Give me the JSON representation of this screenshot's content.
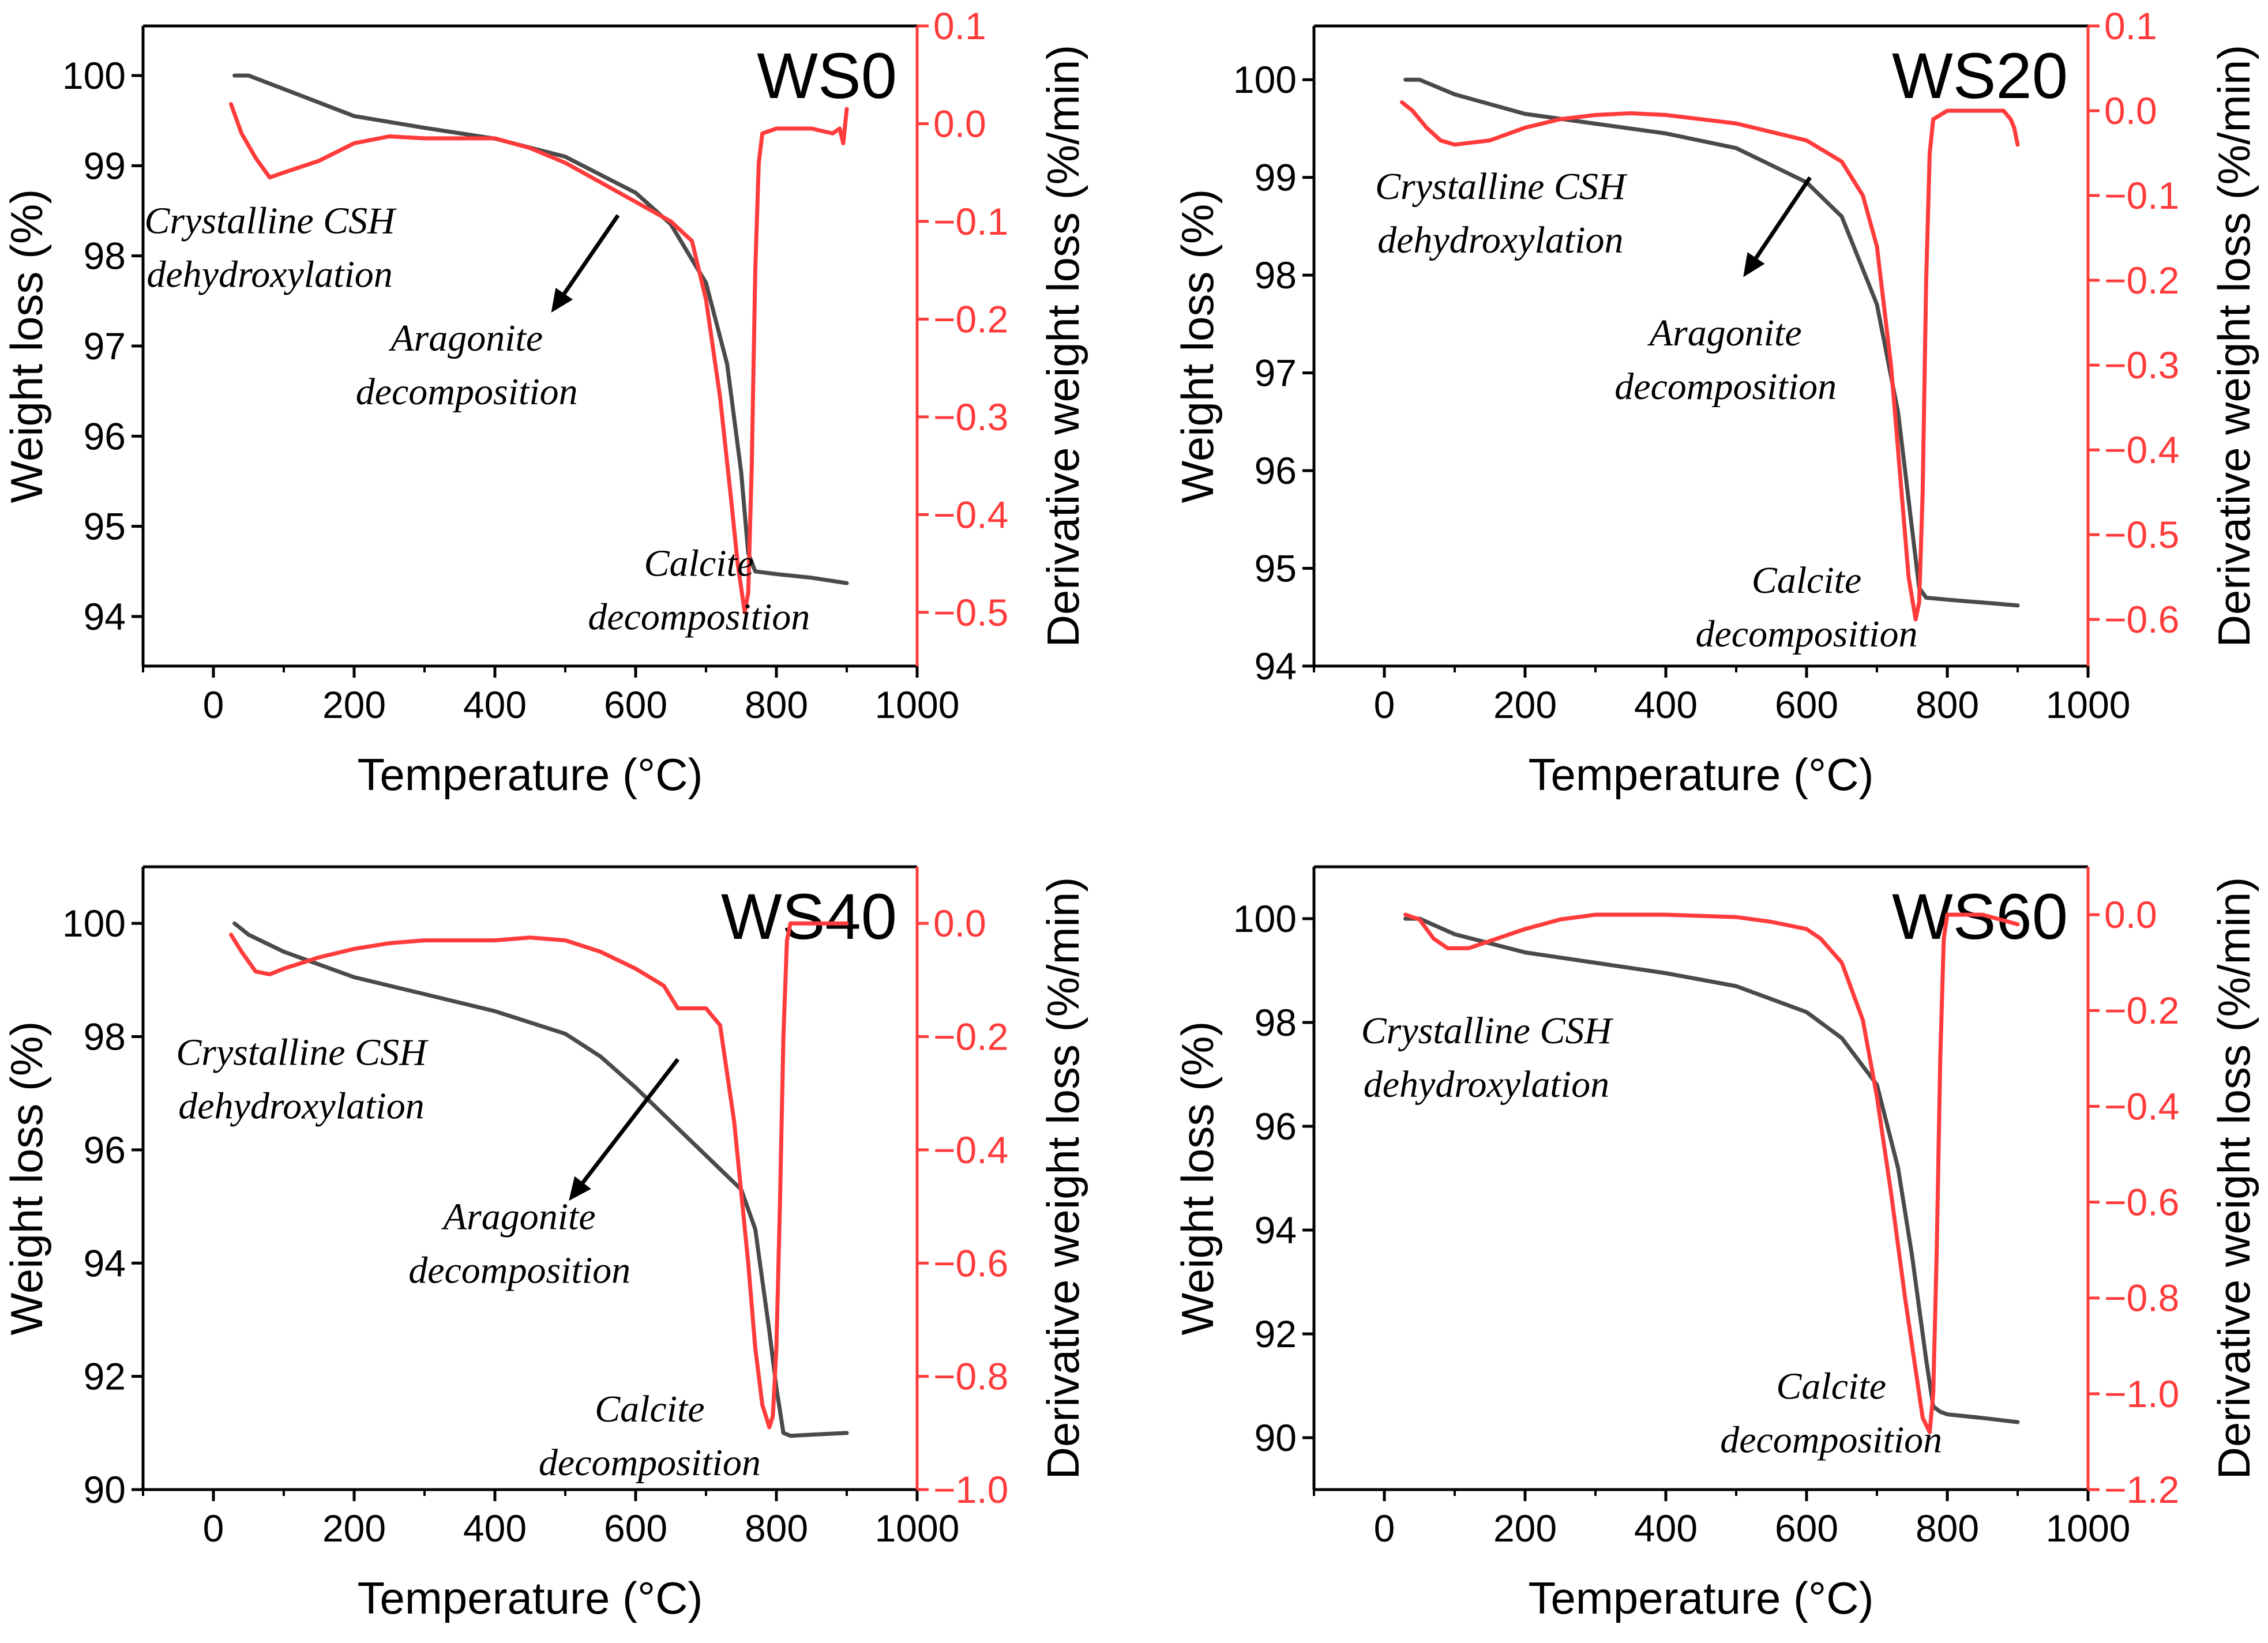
{
  "figure": {
    "description_free": true
  },
  "colors": {
    "weight": "#4a4a4a",
    "derivative": "#ff3b3b",
    "axis": "#000000",
    "arrow": "#000000"
  },
  "chart_data": [
    {
      "type": "line",
      "title": "WS0",
      "xlabel": "Temperature (°C)",
      "ylabel_left": "Weight loss (%)",
      "ylabel_right": "Derivative weight loss (%/min)",
      "xlim": [
        -100,
        1000
      ],
      "ylim_left": [
        93.45,
        100.55
      ],
      "ylim_right": [
        -0.555,
        0.1
      ],
      "x_ticks": [
        0,
        200,
        400,
        600,
        800,
        1000
      ],
      "x_tick_labels": [
        "0",
        "200",
        "400",
        "600",
        "800",
        "1000"
      ],
      "left_ticks": [
        94,
        95,
        96,
        97,
        98,
        99,
        100
      ],
      "left_tick_labels": [
        "94",
        "95",
        "96",
        "97",
        "98",
        "99",
        "100"
      ],
      "right_ticks": [
        0.1,
        0,
        -0.1,
        -0.2,
        -0.3,
        -0.4,
        -0.5
      ],
      "right_tick_labels": [
        "0.1",
        "0.0",
        "−0.1",
        "−0.2",
        "−0.3",
        "−0.4",
        "−0.5"
      ],
      "series": [
        {
          "name": "Weight loss",
          "axis": "left",
          "x": [
            30,
            50,
            100,
            200,
            300,
            400,
            500,
            600,
            650,
            700,
            730,
            750,
            760,
            770,
            800,
            850,
            900
          ],
          "y": [
            100.0,
            100.0,
            99.85,
            99.55,
            99.42,
            99.3,
            99.1,
            98.7,
            98.35,
            97.7,
            96.8,
            95.6,
            94.7,
            94.5,
            94.47,
            94.43,
            94.37
          ]
        },
        {
          "name": "Derivative weight loss",
          "axis": "right",
          "x": [
            25,
            40,
            60,
            80,
            100,
            150,
            200,
            250,
            300,
            350,
            400,
            450,
            500,
            550,
            600,
            650,
            680,
            700,
            720,
            735,
            745,
            755,
            760,
            765,
            770,
            775,
            780,
            800,
            850,
            880,
            890,
            895,
            900
          ],
          "y": [
            0.02,
            -0.01,
            -0.035,
            -0.055,
            -0.05,
            -0.038,
            -0.02,
            -0.013,
            -0.015,
            -0.015,
            -0.015,
            -0.025,
            -0.04,
            -0.06,
            -0.08,
            -0.1,
            -0.12,
            -0.18,
            -0.28,
            -0.38,
            -0.45,
            -0.5,
            -0.48,
            -0.35,
            -0.15,
            -0.04,
            -0.01,
            -0.005,
            -0.005,
            -0.01,
            -0.005,
            -0.02,
            0.015
          ]
        }
      ],
      "annotations": [
        {
          "lines": [
            "Crystalline CSH",
            "dehydroxylation"
          ],
          "x": 80,
          "y": 98.25
        },
        {
          "lines": [
            "Aragonite",
            "decomposition"
          ],
          "x": 360,
          "y": 96.95
        },
        {
          "lines": [
            "Calcite",
            "decomposition"
          ],
          "x": 690,
          "y": 94.45
        }
      ],
      "arrow": {
        "from_x": 575,
        "from_y": 98.45,
        "to_x": 480,
        "to_y": 97.37
      }
    },
    {
      "type": "line",
      "title": "WS20",
      "xlabel": "Temperature (°C)",
      "ylabel_left": "Weight loss (%)",
      "ylabel_right": "Derivative weight loss (%/min)",
      "xlim": [
        -100,
        1000
      ],
      "ylim_left": [
        94.0,
        100.55
      ],
      "ylim_right": [
        -0.655,
        0.1
      ],
      "x_ticks": [
        0,
        200,
        400,
        600,
        800,
        1000
      ],
      "x_tick_labels": [
        "0",
        "200",
        "400",
        "600",
        "800",
        "1000"
      ],
      "left_ticks": [
        94,
        95,
        96,
        97,
        98,
        99,
        100
      ],
      "left_tick_labels": [
        "94",
        "95",
        "96",
        "97",
        "98",
        "99",
        "100"
      ],
      "right_ticks": [
        0.1,
        0,
        -0.1,
        -0.2,
        -0.3,
        -0.4,
        -0.5,
        -0.6
      ],
      "right_tick_labels": [
        "0.1",
        "0.0",
        "−0.1",
        "−0.2",
        "−0.3",
        "−0.4",
        "−0.5",
        "−0.6"
      ],
      "series": [
        {
          "name": "Weight loss",
          "axis": "left",
          "x": [
            30,
            50,
            100,
            200,
            300,
            400,
            500,
            600,
            650,
            700,
            730,
            750,
            760,
            770,
            800,
            850,
            900
          ],
          "y": [
            100.0,
            100.0,
            99.85,
            99.65,
            99.55,
            99.45,
            99.3,
            98.95,
            98.6,
            97.7,
            96.6,
            95.4,
            94.8,
            94.7,
            94.68,
            94.65,
            94.62
          ]
        },
        {
          "name": "Derivative weight loss",
          "axis": "right",
          "x": [
            25,
            40,
            60,
            80,
            100,
            150,
            200,
            250,
            300,
            350,
            400,
            450,
            500,
            550,
            600,
            650,
            680,
            700,
            720,
            735,
            745,
            755,
            760,
            765,
            770,
            775,
            780,
            800,
            850,
            880,
            890,
            895,
            900
          ],
          "y": [
            0.01,
            0.0,
            -0.02,
            -0.035,
            -0.04,
            -0.035,
            -0.02,
            -0.01,
            -0.005,
            -0.003,
            -0.005,
            -0.01,
            -0.015,
            -0.025,
            -0.035,
            -0.06,
            -0.1,
            -0.16,
            -0.3,
            -0.45,
            -0.55,
            -0.6,
            -0.58,
            -0.45,
            -0.2,
            -0.05,
            -0.01,
            0.0,
            0.0,
            0.0,
            -0.01,
            -0.02,
            -0.04
          ]
        }
      ],
      "annotations": [
        {
          "lines": [
            "Crystalline CSH",
            "dehydroxylation"
          ],
          "x": 165,
          "y": 98.78
        },
        {
          "lines": [
            "Aragonite",
            "decomposition"
          ],
          "x": 485,
          "y": 97.28
        },
        {
          "lines": [
            "Calcite",
            "decomposition"
          ],
          "x": 600,
          "y": 94.75
        }
      ],
      "arrow": {
        "from_x": 605,
        "from_y": 99.0,
        "to_x": 510,
        "to_y": 97.98
      }
    },
    {
      "type": "line",
      "title": "WS40",
      "xlabel": "Temperature (°C)",
      "ylabel_left": "Weight loss (%)",
      "ylabel_right": "Derivative weight loss (%/min)",
      "xlim": [
        -100,
        1000
      ],
      "ylim_left": [
        90.0,
        101.0
      ],
      "ylim_right": [
        -1.0,
        0.1
      ],
      "x_ticks": [
        0,
        200,
        400,
        600,
        800,
        1000
      ],
      "x_tick_labels": [
        "0",
        "200",
        "400",
        "600",
        "800",
        "1000"
      ],
      "left_ticks": [
        90,
        92,
        94,
        96,
        98,
        100
      ],
      "left_tick_labels": [
        "90",
        "92",
        "94",
        "96",
        "98",
        "100"
      ],
      "right_ticks": [
        0,
        -0.2,
        -0.4,
        -0.6,
        -0.8,
        -1.0
      ],
      "right_tick_labels": [
        "0.0",
        "−0.2",
        "−0.4",
        "−0.6",
        "−0.8",
        "−1.0"
      ],
      "series": [
        {
          "name": "Weight loss",
          "axis": "left",
          "x": [
            30,
            50,
            100,
            200,
            300,
            400,
            500,
            550,
            600,
            650,
            700,
            750,
            770,
            790,
            800,
            810,
            820,
            850,
            900
          ],
          "y": [
            100.0,
            99.8,
            99.5,
            99.05,
            98.75,
            98.45,
            98.05,
            97.65,
            97.1,
            96.5,
            95.9,
            95.3,
            94.6,
            92.8,
            91.8,
            91.0,
            90.95,
            90.97,
            91.0
          ]
        },
        {
          "name": "Derivative weight loss",
          "axis": "right",
          "x": [
            25,
            40,
            60,
            80,
            100,
            150,
            200,
            250,
            300,
            350,
            400,
            450,
            500,
            550,
            600,
            640,
            660,
            680,
            700,
            720,
            740,
            760,
            770,
            780,
            790,
            795,
            800,
            805,
            810,
            815,
            820,
            850,
            900
          ],
          "y": [
            -0.02,
            -0.05,
            -0.085,
            -0.09,
            -0.08,
            -0.06,
            -0.045,
            -0.035,
            -0.03,
            -0.03,
            -0.03,
            -0.025,
            -0.03,
            -0.05,
            -0.08,
            -0.11,
            -0.15,
            -0.15,
            -0.15,
            -0.18,
            -0.35,
            -0.6,
            -0.75,
            -0.85,
            -0.89,
            -0.87,
            -0.75,
            -0.5,
            -0.2,
            -0.03,
            0.0,
            0.0,
            0.0
          ]
        }
      ],
      "annotations": [
        {
          "lines": [
            "Crystalline CSH",
            "dehydroxylation"
          ],
          "x": 125,
          "y": 97.5
        },
        {
          "lines": [
            "Aragonite",
            "decomposition"
          ],
          "x": 435,
          "y": 94.6
        },
        {
          "lines": [
            "Calcite",
            "decomposition"
          ],
          "x": 620,
          "y": 91.2
        }
      ],
      "arrow": {
        "from_x": 660,
        "from_y": 97.6,
        "to_x": 505,
        "to_y": 95.1
      }
    },
    {
      "type": "line",
      "title": "WS60",
      "xlabel": "Temperature (°C)",
      "ylabel_left": "Weight loss (%)",
      "ylabel_right": "Derivative weight loss (%/min)",
      "xlim": [
        -100,
        1000
      ],
      "ylim_left": [
        89.0,
        101.0
      ],
      "ylim_right": [
        -1.2,
        0.1
      ],
      "x_ticks": [
        0,
        200,
        400,
        600,
        800,
        1000
      ],
      "x_tick_labels": [
        "0",
        "200",
        "400",
        "600",
        "800",
        "1000"
      ],
      "left_ticks": [
        90,
        92,
        94,
        96,
        98,
        100
      ],
      "left_tick_labels": [
        "90",
        "92",
        "94",
        "96",
        "98",
        "100"
      ],
      "right_ticks": [
        0,
        -0.2,
        -0.4,
        -0.6,
        -0.8,
        -1.0,
        -1.2
      ],
      "right_tick_labels": [
        "0.0",
        "−0.2",
        "−0.4",
        "−0.6",
        "−0.8",
        "−1.0",
        "−1.2"
      ],
      "series": [
        {
          "name": "Weight loss",
          "axis": "left",
          "x": [
            30,
            50,
            100,
            200,
            300,
            400,
            500,
            600,
            650,
            700,
            730,
            750,
            770,
            780,
            790,
            800,
            850,
            900
          ],
          "y": [
            100.0,
            100.0,
            99.7,
            99.35,
            99.15,
            98.95,
            98.7,
            98.2,
            97.7,
            96.8,
            95.2,
            93.5,
            91.5,
            90.6,
            90.5,
            90.45,
            90.38,
            90.3
          ]
        },
        {
          "name": "Derivative weight loss",
          "axis": "right",
          "x": [
            30,
            50,
            70,
            90,
            120,
            160,
            200,
            250,
            300,
            400,
            500,
            550,
            600,
            620,
            650,
            680,
            700,
            720,
            740,
            755,
            765,
            775,
            780,
            785,
            790,
            795,
            800,
            850,
            900
          ],
          "y": [
            0.0,
            -0.01,
            -0.05,
            -0.07,
            -0.07,
            -0.05,
            -0.03,
            -0.01,
            0.0,
            0.0,
            -0.005,
            -0.015,
            -0.03,
            -0.05,
            -0.1,
            -0.22,
            -0.38,
            -0.58,
            -0.8,
            -0.95,
            -1.05,
            -1.08,
            -1.0,
            -0.7,
            -0.3,
            -0.05,
            0.0,
            0.0,
            -0.02
          ]
        }
      ],
      "annotations": [
        {
          "lines": [
            "Crystalline CSH",
            "dehydroxylation"
          ],
          "x": 145,
          "y": 97.6
        },
        {
          "lines": [
            "Calcite",
            "decomposition"
          ],
          "x": 635,
          "y": 90.75
        }
      ],
      "arrow": null
    }
  ]
}
